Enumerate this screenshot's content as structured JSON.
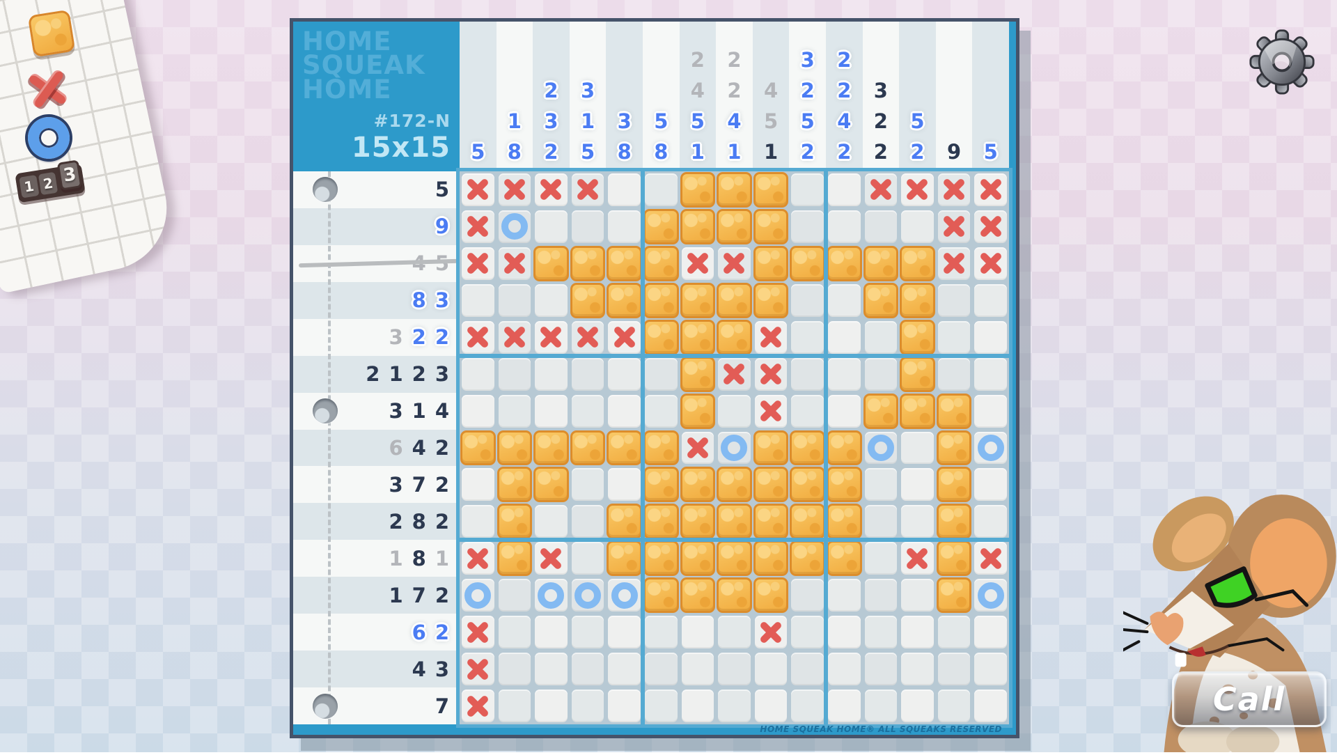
{
  "board": {
    "logo_lines": [
      "HOME",
      "SQUEAK",
      "HOME"
    ],
    "puzzle_id": "#172-N",
    "puzzle_size": "15x15",
    "copyright": "HOME SQUEAK HOME® ALL SQUEAKS RESERVED"
  },
  "tools": {
    "items": [
      {
        "name": "fill-cheese-tool"
      },
      {
        "name": "x-mark-tool"
      },
      {
        "name": "circle-mark-tool"
      },
      {
        "name": "numbers-tool",
        "digits": [
          "1",
          "2",
          "3"
        ]
      }
    ]
  },
  "call_button": {
    "label": "Call"
  },
  "clues": {
    "color_legend": {
      "b": "active-blue",
      "g": "completed-gray",
      "d": "dark"
    },
    "columns": [
      [
        {
          "n": 5,
          "c": "b"
        }
      ],
      [
        {
          "n": 1,
          "c": "b"
        },
        {
          "n": 8,
          "c": "b"
        }
      ],
      [
        {
          "n": 2,
          "c": "b"
        },
        {
          "n": 3,
          "c": "b"
        },
        {
          "n": 2,
          "c": "b"
        }
      ],
      [
        {
          "n": 3,
          "c": "b"
        },
        {
          "n": 1,
          "c": "b"
        },
        {
          "n": 5,
          "c": "b"
        }
      ],
      [
        {
          "n": 3,
          "c": "b"
        },
        {
          "n": 8,
          "c": "b"
        }
      ],
      [
        {
          "n": 5,
          "c": "b"
        },
        {
          "n": 8,
          "c": "b"
        }
      ],
      [
        {
          "n": 2,
          "c": "g"
        },
        {
          "n": 4,
          "c": "g"
        },
        {
          "n": 5,
          "c": "b"
        },
        {
          "n": 1,
          "c": "b"
        }
      ],
      [
        {
          "n": 2,
          "c": "g"
        },
        {
          "n": 2,
          "c": "g"
        },
        {
          "n": 4,
          "c": "b"
        },
        {
          "n": 1,
          "c": "b"
        }
      ],
      [
        {
          "n": 4,
          "c": "g"
        },
        {
          "n": 5,
          "c": "g"
        },
        {
          "n": 1,
          "c": "d"
        }
      ],
      [
        {
          "n": 3,
          "c": "b"
        },
        {
          "n": 2,
          "c": "b"
        },
        {
          "n": 5,
          "c": "b"
        },
        {
          "n": 2,
          "c": "b"
        }
      ],
      [
        {
          "n": 2,
          "c": "b"
        },
        {
          "n": 2,
          "c": "b"
        },
        {
          "n": 4,
          "c": "b"
        },
        {
          "n": 2,
          "c": "b"
        }
      ],
      [
        {
          "n": 3,
          "c": "d"
        },
        {
          "n": 2,
          "c": "d"
        },
        {
          "n": 2,
          "c": "d"
        }
      ],
      [
        {
          "n": 5,
          "c": "b"
        },
        {
          "n": 2,
          "c": "b"
        }
      ],
      [
        {
          "n": 9,
          "c": "d"
        }
      ],
      [
        {
          "n": 5,
          "c": "b"
        }
      ]
    ],
    "rows": [
      [
        {
          "n": 5,
          "c": "d"
        }
      ],
      [
        {
          "n": 9,
          "c": "b"
        }
      ],
      [
        {
          "n": 4,
          "c": "g"
        },
        {
          "n": 5,
          "c": "g"
        }
      ],
      [
        {
          "n": 8,
          "c": "b"
        },
        {
          "n": 3,
          "c": "b"
        }
      ],
      [
        {
          "n": 3,
          "c": "g"
        },
        {
          "n": 2,
          "c": "b"
        },
        {
          "n": 2,
          "c": "b"
        }
      ],
      [
        {
          "n": 2,
          "c": "d"
        },
        {
          "n": 1,
          "c": "d"
        },
        {
          "n": 2,
          "c": "d"
        },
        {
          "n": 3,
          "c": "d"
        }
      ],
      [
        {
          "n": 3,
          "c": "d"
        },
        {
          "n": 1,
          "c": "d"
        },
        {
          "n": 4,
          "c": "d"
        }
      ],
      [
        {
          "n": 6,
          "c": "g"
        },
        {
          "n": 4,
          "c": "d"
        },
        {
          "n": 2,
          "c": "d"
        }
      ],
      [
        {
          "n": 3,
          "c": "d"
        },
        {
          "n": 7,
          "c": "d"
        },
        {
          "n": 2,
          "c": "d"
        }
      ],
      [
        {
          "n": 2,
          "c": "d"
        },
        {
          "n": 8,
          "c": "d"
        },
        {
          "n": 2,
          "c": "d"
        }
      ],
      [
        {
          "n": 1,
          "c": "g"
        },
        {
          "n": 8,
          "c": "d"
        },
        {
          "n": 1,
          "c": "g"
        }
      ],
      [
        {
          "n": 1,
          "c": "d"
        },
        {
          "n": 7,
          "c": "d"
        },
        {
          "n": 2,
          "c": "d"
        }
      ],
      [
        {
          "n": 6,
          "c": "b"
        },
        {
          "n": 2,
          "c": "b"
        }
      ],
      [
        {
          "n": 4,
          "c": "d"
        },
        {
          "n": 3,
          "c": "d"
        }
      ],
      [
        {
          "n": 7,
          "c": "d"
        }
      ]
    ],
    "struck_row_index": 2
  },
  "grid": {
    "rows": 15,
    "cols": 15,
    "cell_legend": {
      ".": "empty",
      "F": "filled-cheese",
      "X": "x-mark",
      "O": "circle-mark"
    },
    "cells": [
      "XXXX..FFF..XXXX",
      "XO...FFFF....XX",
      "XXFFFFXXFFFFFXX",
      "...FFFFFF..FF..",
      "XXXXXFFFX...F..",
      "......FXX...F..",
      "......F.X..FFF.",
      "FFFFFFXOFFFO.FO",
      ".FF..FFFFFF..F.",
      ".F..FFFFFFF..F.",
      "XFX.FFFFFFF.XFX",
      "O.OOOFFFF....FO",
      "X.......X......",
      "X..............",
      "X.............."
    ]
  },
  "notebook": {
    "hole_rows": [
      0,
      6,
      14
    ]
  },
  "colors": {
    "frame_blue": "#2d9aca",
    "separator_blue": "#55aad2",
    "clue_blue": "#4b7cf3",
    "clue_gray": "#b3b5b9",
    "clue_dark": "#2c3950",
    "cheese": "#f6bc55",
    "cheese_border": "#dc8d2c",
    "x_mark": "#e25c56",
    "o_mark": "#83baf2"
  }
}
